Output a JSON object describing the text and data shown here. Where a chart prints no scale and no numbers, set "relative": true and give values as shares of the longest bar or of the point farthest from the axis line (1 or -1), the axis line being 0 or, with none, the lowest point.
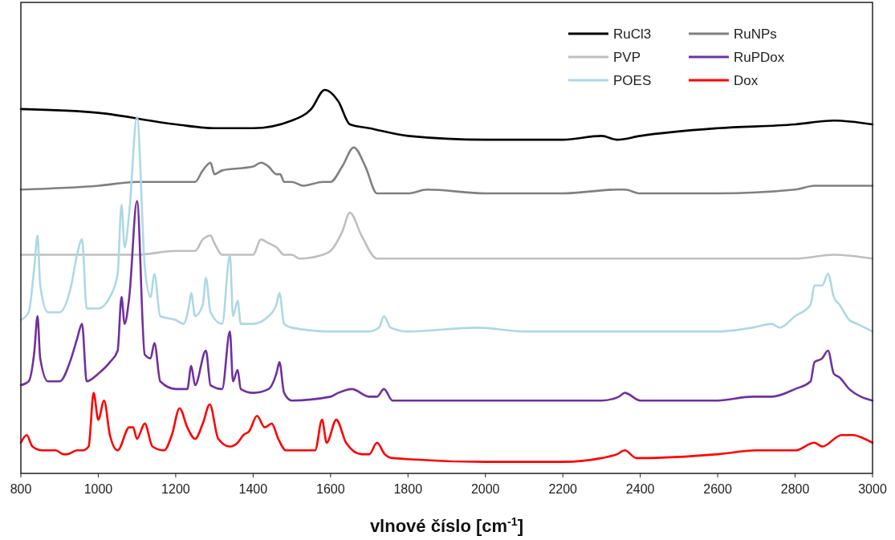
{
  "chart_data": {
    "type": "line",
    "relative": true,
    "xlabel": "vlnové číslo [cm$^{-1}$]",
    "xlim": [
      800,
      3000
    ],
    "xticks": [
      800,
      1000,
      1200,
      1400,
      1600,
      1800,
      2000,
      2200,
      2400,
      2600,
      2800,
      3000
    ],
    "grid": false,
    "legend": "top right",
    "series": [
      {
        "name": "RuCl3",
        "color": "#000000",
        "x": [
          800,
          1000,
          1200,
          1300,
          1400,
          1500,
          1550,
          1585,
          1620,
          1650,
          1700,
          1800,
          2000,
          2200,
          2300,
          2340,
          2400,
          2600,
          2800,
          2900,
          3000
        ],
        "values": [
          0.95,
          0.94,
          0.91,
          0.9,
          0.9,
          0.92,
          0.95,
          1.0,
          0.97,
          0.91,
          0.9,
          0.88,
          0.87,
          0.87,
          0.88,
          0.87,
          0.88,
          0.9,
          0.91,
          0.92,
          0.91
        ]
      },
      {
        "name": "RuNPs",
        "color": "#808080",
        "x": [
          800,
          1000,
          1100,
          1150,
          1200,
          1250,
          1270,
          1290,
          1300,
          1320,
          1400,
          1420,
          1440,
          1460,
          1470,
          1480,
          1500,
          1530,
          1580,
          1600,
          1630,
          1660,
          1690,
          1720,
          1800,
          1850,
          2000,
          2200,
          2340,
          2360,
          2400,
          2600,
          2800,
          2850,
          2950,
          3000
        ],
        "values": [
          0.74,
          0.75,
          0.76,
          0.76,
          0.76,
          0.76,
          0.79,
          0.81,
          0.78,
          0.79,
          0.8,
          0.81,
          0.8,
          0.78,
          0.78,
          0.76,
          0.76,
          0.75,
          0.76,
          0.76,
          0.8,
          0.85,
          0.8,
          0.73,
          0.73,
          0.74,
          0.73,
          0.73,
          0.74,
          0.74,
          0.73,
          0.73,
          0.74,
          0.75,
          0.75,
          0.75
        ]
      },
      {
        "name": "PVP",
        "color": "#bfbfbf",
        "x": [
          800,
          850,
          1000,
          1100,
          1200,
          1250,
          1270,
          1290,
          1300,
          1320,
          1360,
          1380,
          1400,
          1420,
          1440,
          1460,
          1480,
          1500,
          1520,
          1580,
          1600,
          1630,
          1650,
          1680,
          1720,
          1800,
          2000,
          2200,
          2400,
          2600,
          2800,
          2900,
          3000
        ],
        "values": [
          0.57,
          0.57,
          0.57,
          0.57,
          0.58,
          0.58,
          0.61,
          0.62,
          0.6,
          0.57,
          0.57,
          0.57,
          0.57,
          0.61,
          0.6,
          0.59,
          0.57,
          0.57,
          0.56,
          0.57,
          0.58,
          0.63,
          0.68,
          0.62,
          0.56,
          0.56,
          0.56,
          0.56,
          0.56,
          0.56,
          0.56,
          0.57,
          0.56
        ]
      },
      {
        "name": "RuPDox",
        "color": "#7030a0",
        "x": [
          800,
          820,
          835,
          843,
          850,
          870,
          900,
          930,
          945,
          958,
          970,
          1000,
          1030,
          1050,
          1060,
          1068,
          1080,
          1100,
          1120,
          1135,
          1145,
          1160,
          1200,
          1230,
          1240,
          1250,
          1278,
          1290,
          1320,
          1340,
          1348,
          1360,
          1368,
          1400,
          1440,
          1460,
          1468,
          1480,
          1500,
          1600,
          1620,
          1655,
          1700,
          1720,
          1738,
          1760,
          2000,
          2300,
          2345,
          2360,
          2400,
          2600,
          2690,
          2740,
          2800,
          2840,
          2850,
          2870,
          2885,
          2900,
          2915,
          2940,
          2970,
          3000
        ],
        "values": [
          0.23,
          0.24,
          0.32,
          0.41,
          0.3,
          0.24,
          0.24,
          0.3,
          0.35,
          0.39,
          0.24,
          0.26,
          0.29,
          0.32,
          0.46,
          0.39,
          0.46,
          0.71,
          0.31,
          0.3,
          0.34,
          0.24,
          0.22,
          0.22,
          0.28,
          0.23,
          0.32,
          0.23,
          0.22,
          0.37,
          0.24,
          0.27,
          0.22,
          0.21,
          0.22,
          0.26,
          0.29,
          0.21,
          0.19,
          0.2,
          0.21,
          0.22,
          0.2,
          0.2,
          0.22,
          0.19,
          0.19,
          0.19,
          0.2,
          0.21,
          0.19,
          0.19,
          0.2,
          0.2,
          0.22,
          0.24,
          0.29,
          0.3,
          0.32,
          0.26,
          0.25,
          0.22,
          0.2,
          0.19
        ]
      },
      {
        "name": "POES",
        "color": "#add8e6",
        "x": [
          800,
          820,
          835,
          843,
          850,
          870,
          900,
          930,
          945,
          958,
          970,
          1000,
          1030,
          1050,
          1060,
          1068,
          1080,
          1100,
          1120,
          1135,
          1145,
          1160,
          1200,
          1220,
          1235,
          1240,
          1250,
          1270,
          1278,
          1290,
          1320,
          1340,
          1348,
          1360,
          1368,
          1400,
          1440,
          1460,
          1468,
          1480,
          1500,
          1600,
          1700,
          1725,
          1738,
          1755,
          1800,
          1980,
          2100,
          2400,
          2600,
          2690,
          2740,
          2760,
          2800,
          2840,
          2850,
          2870,
          2885,
          2900,
          2915,
          2940,
          2960,
          3000
        ],
        "values": [
          0.4,
          0.42,
          0.54,
          0.62,
          0.49,
          0.42,
          0.42,
          0.49,
          0.57,
          0.61,
          0.43,
          0.43,
          0.46,
          0.52,
          0.7,
          0.59,
          0.68,
          0.93,
          0.54,
          0.46,
          0.52,
          0.41,
          0.4,
          0.39,
          0.44,
          0.47,
          0.41,
          0.44,
          0.51,
          0.42,
          0.39,
          0.57,
          0.41,
          0.45,
          0.39,
          0.39,
          0.41,
          0.44,
          0.47,
          0.39,
          0.38,
          0.37,
          0.37,
          0.38,
          0.41,
          0.38,
          0.37,
          0.38,
          0.37,
          0.37,
          0.37,
          0.38,
          0.39,
          0.38,
          0.41,
          0.44,
          0.49,
          0.49,
          0.52,
          0.46,
          0.44,
          0.4,
          0.39,
          0.37
        ]
      },
      {
        "name": "Dox",
        "color": "#ff0000",
        "x": [
          800,
          815,
          830,
          855,
          870,
          880,
          890,
          910,
          920,
          945,
          960,
          975,
          988,
          1000,
          1015,
          1030,
          1050,
          1080,
          1090,
          1100,
          1120,
          1140,
          1170,
          1190,
          1210,
          1230,
          1250,
          1270,
          1288,
          1310,
          1340,
          1360,
          1375,
          1390,
          1410,
          1430,
          1448,
          1465,
          1485,
          1520,
          1560,
          1578,
          1590,
          1615,
          1640,
          1680,
          1700,
          1720,
          1740,
          1760,
          2000,
          2200,
          2300,
          2340,
          2360,
          2390,
          2400,
          2600,
          2700,
          2800,
          2850,
          2870,
          2920,
          2950,
          2980,
          3000
        ],
        "values": [
          0.08,
          0.1,
          0.07,
          0.06,
          0.06,
          0.06,
          0.06,
          0.05,
          0.05,
          0.06,
          0.06,
          0.07,
          0.21,
          0.14,
          0.19,
          0.1,
          0.06,
          0.12,
          0.12,
          0.09,
          0.13,
          0.07,
          0.06,
          0.1,
          0.17,
          0.12,
          0.09,
          0.13,
          0.18,
          0.09,
          0.07,
          0.08,
          0.1,
          0.11,
          0.15,
          0.12,
          0.13,
          0.09,
          0.06,
          0.06,
          0.06,
          0.14,
          0.08,
          0.14,
          0.08,
          0.05,
          0.05,
          0.08,
          0.05,
          0.04,
          0.03,
          0.03,
          0.04,
          0.05,
          0.06,
          0.04,
          0.04,
          0.05,
          0.06,
          0.06,
          0.08,
          0.07,
          0.1,
          0.1,
          0.09,
          0.08
        ]
      }
    ]
  }
}
